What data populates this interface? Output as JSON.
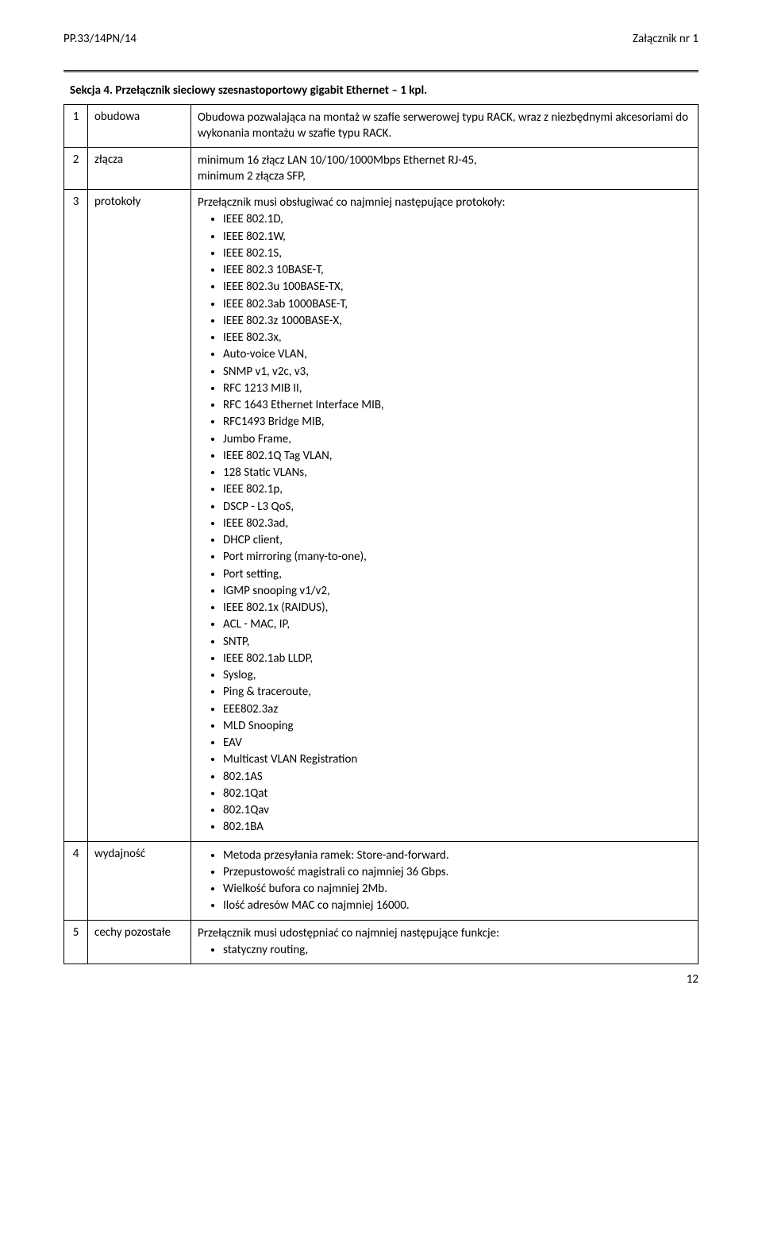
{
  "header": {
    "left": "PP.33/14PN/14",
    "right": "Załącznik nr 1"
  },
  "section_title": "Sekcja 4. Przełącznik sieciowy szesnastoportowy gigabit Ethernet – 1 kpl.",
  "rows": [
    {
      "num": "1",
      "label": "obudowa",
      "text": "Obudowa pozwalająca na montaż w szafie serwerowej typu RACK, wraz z niezbędnymi akcesoriami do wykonania montażu w szafie typu RACK."
    },
    {
      "num": "2",
      "label": "złącza",
      "text": "minimum 16 złącz LAN 10/100/1000Mbps Ethernet RJ-45,\nminimum 2 złącza SFP,"
    },
    {
      "num": "3",
      "label": "protokoły",
      "lead": "Przełącznik musi obsługiwać co najmniej następujące protokoły:",
      "bullets": [
        "IEEE 802.1D,",
        "IEEE 802.1W,",
        "IEEE 802.1S,",
        "IEEE 802.3 10BASE-T,",
        "IEEE 802.3u 100BASE-TX,",
        "IEEE 802.3ab 1000BASE-T,",
        "IEEE 802.3z 1000BASE-X,",
        "IEEE 802.3x,",
        "Auto-voice VLAN,",
        "SNMP v1, v2c, v3,",
        "RFC 1213 MIB II,",
        "RFC 1643 Ethernet Interface MIB,",
        "RFC1493 Bridge MIB,",
        "Jumbo Frame,",
        "IEEE 802.1Q Tag VLAN,",
        "128 Static VLANs,",
        "IEEE 802.1p,",
        "DSCP - L3 QoS,",
        "IEEE 802.3ad,",
        "DHCP client,",
        "Port mirroring (many-to-one),",
        "Port setting,",
        "IGMP snooping v1/v2,",
        "IEEE 802.1x (RAIDUS),",
        "ACL - MAC, IP,",
        "SNTP,",
        "IEEE 802.1ab LLDP,",
        "Syslog,",
        "Ping & traceroute,",
        "EEE802.3az",
        "MLD Snooping",
        "EAV",
        "Multicast VLAN Registration",
        "802.1AS",
        "802.1Qat",
        "802.1Qav",
        "802.1BA"
      ]
    },
    {
      "num": "4",
      "label": "wydajność",
      "bullets": [
        "Metoda przesyłania ramek: Store-and-forward.",
        "Przepustowość magistrali co najmniej 36 Gbps.",
        "Wielkość bufora co najmniej 2Mb.",
        "Ilość adresów MAC co najmniej 16000."
      ]
    },
    {
      "num": "5",
      "label": "cechy pozostałe",
      "lead": "Przełącznik musi udostępniać co najmniej następujące funkcje:",
      "bullets": [
        "statyczny routing,"
      ]
    }
  ],
  "footer_page": "12"
}
